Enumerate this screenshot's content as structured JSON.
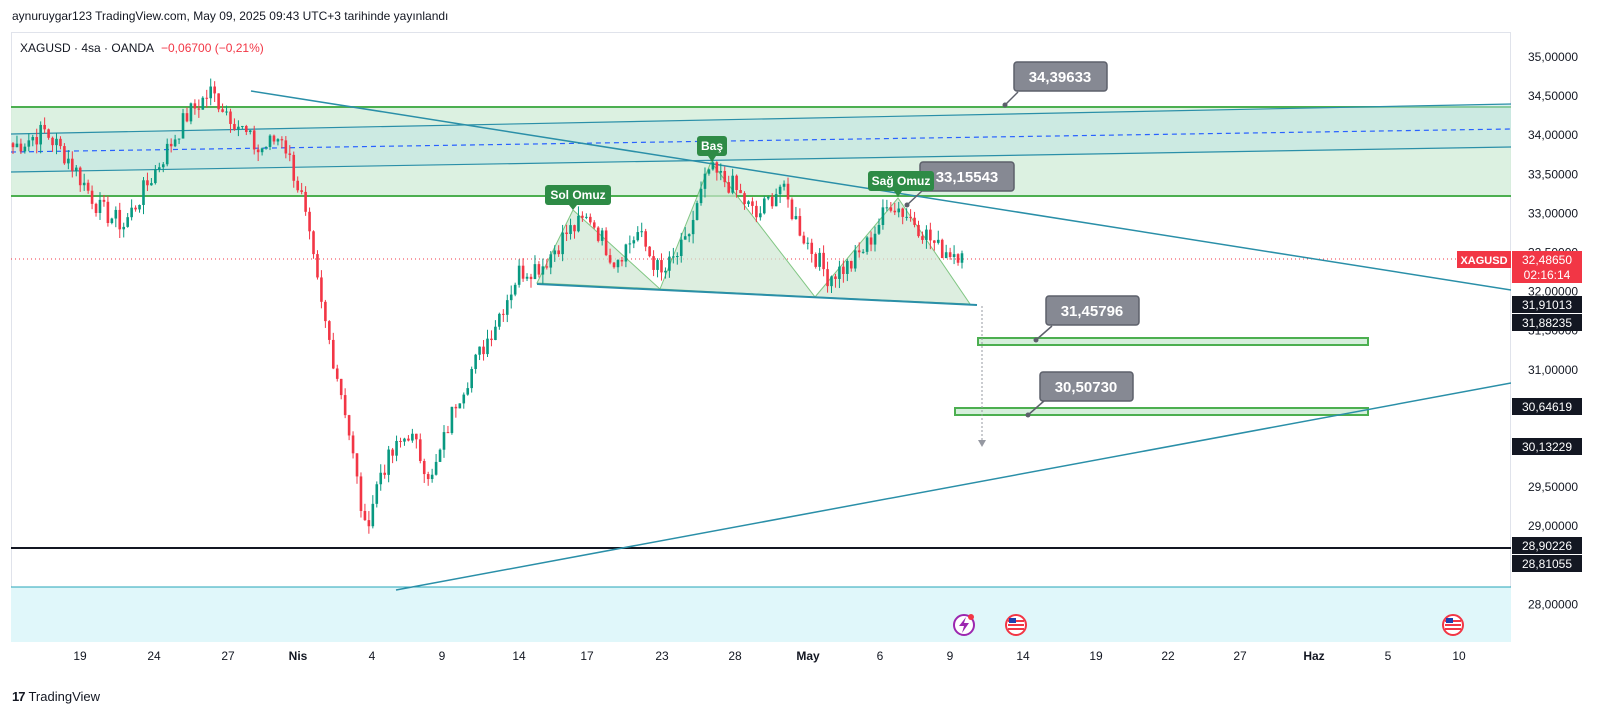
{
  "header": {
    "publish_line": "aynuruygar123 TradingView.com, May 09, 2025 09:43 UTC+3 tarihinde yayınlandı"
  },
  "legend": {
    "symbol_line": "XAGUSD · 4sa · OANDA",
    "change": "−0,06700 (−0,21%)"
  },
  "footer": {
    "brand": "TradingView"
  },
  "colors": {
    "up": "#089981",
    "down": "#f23645",
    "zone": "#4caf50",
    "zone_fill": "#d6efdc",
    "trend": "#2a8fa8",
    "support": "#131722",
    "label_gray": "#868993",
    "price_red": "#f23645"
  },
  "chart_data": {
    "type": "candlestick",
    "symbol": "XAGUSD",
    "timeframe": "4sa",
    "ylim": [
      27.75,
      35.25
    ],
    "y_ticks": [
      "35,00000",
      "34,50000",
      "34,00000",
      "33,50000",
      "33,00000",
      "32,50000",
      "32,00000",
      "31,50000",
      "31,00000",
      "30,50000",
      "30,00000",
      "29,50000",
      "29,00000",
      "28,50000",
      "28,00000"
    ],
    "x_ticks": [
      "19",
      "24",
      "27",
      "Nis",
      "4",
      "9",
      "14",
      "17",
      "23",
      "28",
      "May",
      "6",
      "9",
      "14",
      "19",
      "22",
      "27",
      "Haz",
      "5",
      "10"
    ],
    "anchors": [
      {
        "i": 0,
        "v": 33.85
      },
      {
        "i": 8,
        "v": 34.05
      },
      {
        "i": 14,
        "v": 33.7
      },
      {
        "i": 22,
        "v": 33.05
      },
      {
        "i": 28,
        "v": 32.85
      },
      {
        "i": 36,
        "v": 33.55
      },
      {
        "i": 44,
        "v": 34.25
      },
      {
        "i": 50,
        "v": 34.55
      },
      {
        "i": 56,
        "v": 34.2
      },
      {
        "i": 62,
        "v": 33.8
      },
      {
        "i": 68,
        "v": 34.0
      },
      {
        "i": 73,
        "v": 33.2
      },
      {
        "i": 78,
        "v": 31.8
      },
      {
        "i": 84,
        "v": 30.5
      },
      {
        "i": 89,
        "v": 28.95
      },
      {
        "i": 93,
        "v": 29.7
      },
      {
        "i": 100,
        "v": 30.2
      },
      {
        "i": 106,
        "v": 29.6
      },
      {
        "i": 112,
        "v": 30.6
      },
      {
        "i": 120,
        "v": 31.4
      },
      {
        "i": 128,
        "v": 32.25
      },
      {
        "i": 134,
        "v": 32.35
      },
      {
        "i": 140,
        "v": 32.75
      },
      {
        "i": 146,
        "v": 32.95
      },
      {
        "i": 152,
        "v": 32.4
      },
      {
        "i": 158,
        "v": 32.75
      },
      {
        "i": 164,
        "v": 32.2
      },
      {
        "i": 170,
        "v": 32.6
      },
      {
        "i": 176,
        "v": 33.55
      },
      {
        "i": 182,
        "v": 33.35
      },
      {
        "i": 188,
        "v": 32.95
      },
      {
        "i": 194,
        "v": 33.35
      },
      {
        "i": 200,
        "v": 32.7
      },
      {
        "i": 206,
        "v": 32.2
      },
      {
        "i": 212,
        "v": 32.35
      },
      {
        "i": 216,
        "v": 32.6
      },
      {
        "i": 222,
        "v": 33.15
      },
      {
        "i": 228,
        "v": 32.9
      },
      {
        "i": 234,
        "v": 32.55
      },
      {
        "i": 240,
        "v": 32.49
      }
    ],
    "last_price": {
      "symbol": "XAGUSD",
      "value": "32,48650",
      "countdown": "02:16:14"
    },
    "patterns": {
      "left_shoulder": "Sol Omuz",
      "head": "Baş",
      "right_shoulder": "Sağ Omuz"
    },
    "callouts": [
      "34,39633",
      "33,15543",
      "31,45796",
      "30,50730"
    ],
    "price_levels": [
      "31,91013",
      "31,88235",
      "30,64619",
      "30,13229",
      "28,90226",
      "28,81055"
    ]
  }
}
